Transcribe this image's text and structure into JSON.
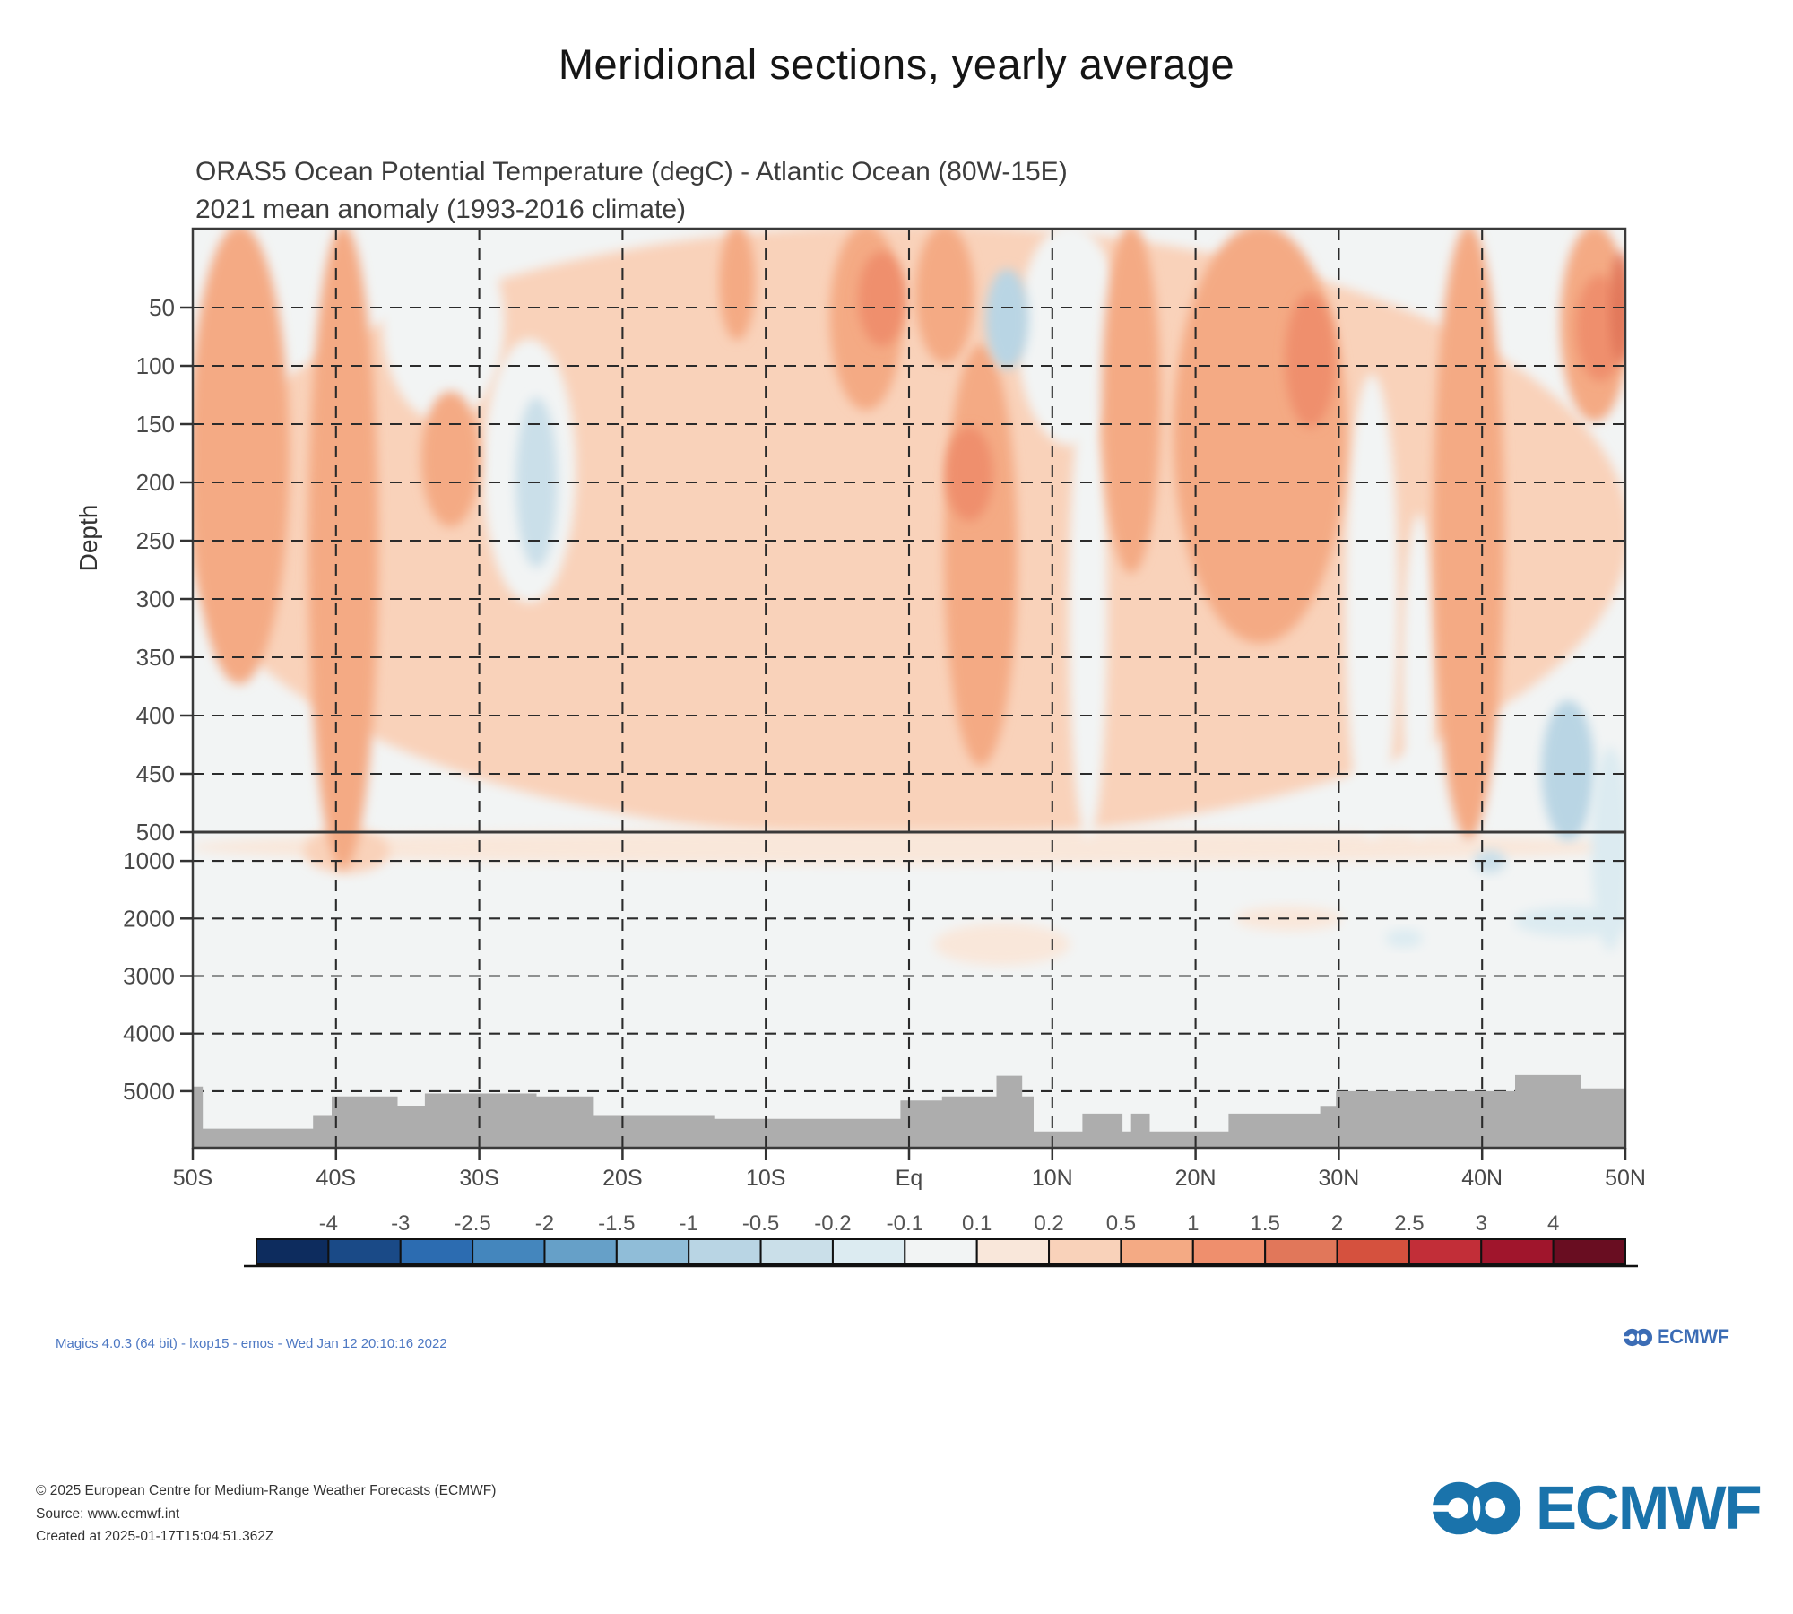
{
  "page": {
    "title": "Meridional sections, yearly average"
  },
  "chart": {
    "subtitle_line1": "ORAS5 Ocean Potential Temperature (degC) - Atlantic Ocean (80W-15E)",
    "subtitle_line2": "2021 mean anomaly (1993-2016 climate)",
    "chart_data": {
      "type": "heatmap",
      "title": "ORAS5 Ocean Potential Temperature (degC) - Atlantic Ocean (80W-15E)",
      "subtitle": "2021 mean anomaly (1993-2016 climate)",
      "units": "degC",
      "xlabel": "",
      "ylabel": "Depth",
      "x_ticks": [
        {
          "lat": -50,
          "label": "50S"
        },
        {
          "lat": -40,
          "label": "40S"
        },
        {
          "lat": -30,
          "label": "30S"
        },
        {
          "lat": -20,
          "label": "20S"
        },
        {
          "lat": -10,
          "label": "10S"
        },
        {
          "lat": 0,
          "label": "Eq"
        },
        {
          "lat": 10,
          "label": "10N"
        },
        {
          "lat": 20,
          "label": "20N"
        },
        {
          "lat": 30,
          "label": "30N"
        },
        {
          "lat": 40,
          "label": "40N"
        },
        {
          "lat": 50,
          "label": "50N"
        }
      ],
      "depth_ticks_m": [
        50,
        100,
        150,
        200,
        250,
        300,
        350,
        400,
        450,
        500,
        1000,
        2000,
        3000,
        4000,
        5000
      ],
      "depth_axis_break_m": 500,
      "max_depth_m": 5980,
      "grid": "dashed",
      "colorbar": {
        "levels": [
          -4,
          -3,
          -2.5,
          -2,
          -1.5,
          -1,
          -0.5,
          -0.2,
          -0.1,
          0.1,
          0.2,
          0.5,
          1,
          1.5,
          2,
          2.5,
          3,
          4
        ],
        "labels": [
          "-4",
          "-3",
          "-2.5",
          "-2",
          "-1.5",
          "-1",
          "-0.5",
          "-0.2",
          "-0.1",
          "0.1",
          "0.2",
          "0.5",
          "1",
          "1.5",
          "2",
          "2.5",
          "3",
          "4"
        ],
        "colors": [
          "#0d2c5e",
          "#1a4a87",
          "#2c6cb1",
          "#4486bd",
          "#66a0c8",
          "#90bdd8",
          "#b9d5e4",
          "#cadfe9",
          "#dcebf1",
          "#f2f4f4",
          "#f9e7da",
          "#f9d2ba",
          "#f4aa84",
          "#ef8f6d",
          "#e1775a",
          "#d5513e",
          "#c22e38",
          "#a0152c",
          "#690d21"
        ]
      },
      "anomaly_patches": [
        [
          -50,
          50,
          0,
          560,
          0.3
        ],
        [
          -50,
          50,
          520,
          1000,
          0.15
        ],
        [
          -42,
          -36.5,
          500,
          1150,
          0.3
        ],
        [
          2,
          11,
          2150,
          2750,
          0.15
        ],
        [
          23,
          30,
          1850,
          2150,
          0.15
        ],
        [
          -36.5,
          -28.5,
          0,
          145,
          0
        ],
        [
          -29.5,
          -23.5,
          80,
          300,
          0
        ],
        [
          7.8,
          14.6,
          0,
          165,
          0
        ],
        [
          11.4,
          13.6,
          120,
          560,
          0
        ],
        [
          30.7,
          33.9,
          110,
          560,
          0
        ],
        [
          34.7,
          36.5,
          230,
          560,
          0
        ],
        [
          -50,
          -43.5,
          0,
          370,
          0.7
        ],
        [
          -41.7,
          -37.3,
          0,
          1080,
          0.7
        ],
        [
          -33.8,
          -30.2,
          125,
          235,
          0.7
        ],
        [
          -13,
          -11,
          0,
          75,
          0.7
        ],
        [
          -5.3,
          -0.7,
          0,
          135,
          0.7
        ],
        [
          0.7,
          4.3,
          0,
          95,
          0.7
        ],
        [
          2.7,
          7.3,
          85,
          440,
          0.7
        ],
        [
          13.7,
          17.3,
          0,
          275,
          0.7
        ],
        [
          18.7,
          30.3,
          0,
          335,
          0.7
        ],
        [
          36.8,
          41.3,
          0,
          560,
          0.7
        ],
        [
          45.7,
          50,
          0,
          145,
          0.7
        ],
        [
          26.5,
          29.5,
          40,
          150,
          1.2
        ],
        [
          2.8,
          5.6,
          155,
          230,
          1.2
        ],
        [
          -3.3,
          -0.5,
          5,
          80,
          1.2
        ],
        [
          46.8,
          49.7,
          25,
          110,
          1.2
        ],
        [
          49.2,
          50,
          5,
          95,
          1.7
        ],
        [
          -27.2,
          -24.8,
          130,
          270,
          -0.3
        ],
        [
          5.6,
          8.1,
          20,
          100,
          -0.7
        ],
        [
          44.4,
          47.6,
          390,
          580,
          -0.7
        ],
        [
          47.9,
          50,
          430,
          2500,
          -0.15
        ],
        [
          39.7,
          41.4,
          870,
          1150,
          -0.3
        ],
        [
          42.5,
          49.9,
          1850,
          2250,
          -0.15
        ],
        [
          33.5,
          35.6,
          2250,
          2450,
          -0.15
        ]
      ],
      "bathymetry_lat_depth": [
        [
          -50,
          4920
        ],
        [
          -49.3,
          4920
        ],
        [
          -49.3,
          5650
        ],
        [
          -41.6,
          5650
        ],
        [
          -41.6,
          5430
        ],
        [
          -40.3,
          5430
        ],
        [
          -40.3,
          5090
        ],
        [
          -35.7,
          5090
        ],
        [
          -35.7,
          5250
        ],
        [
          -33.8,
          5250
        ],
        [
          -33.8,
          5040
        ],
        [
          -26,
          5040
        ],
        [
          -26,
          5090
        ],
        [
          -22,
          5090
        ],
        [
          -22,
          5430
        ],
        [
          -13.6,
          5430
        ],
        [
          -13.6,
          5480
        ],
        [
          -0.6,
          5480
        ],
        [
          -0.6,
          5160
        ],
        [
          2.3,
          5160
        ],
        [
          2.3,
          5090
        ],
        [
          6.1,
          5090
        ],
        [
          6.1,
          4730
        ],
        [
          7.9,
          4730
        ],
        [
          7.9,
          5090
        ],
        [
          8.7,
          5090
        ],
        [
          8.7,
          5700
        ],
        [
          12.1,
          5700
        ],
        [
          12.1,
          5390
        ],
        [
          14.9,
          5390
        ],
        [
          14.9,
          5700
        ],
        [
          15.5,
          5700
        ],
        [
          15.5,
          5390
        ],
        [
          16.8,
          5390
        ],
        [
          16.8,
          5700
        ],
        [
          22.3,
          5700
        ],
        [
          22.3,
          5390
        ],
        [
          28.7,
          5390
        ],
        [
          28.7,
          5270
        ],
        [
          29.8,
          5270
        ],
        [
          29.8,
          5000
        ],
        [
          42.3,
          5000
        ],
        [
          42.3,
          4720
        ],
        [
          46.9,
          4720
        ],
        [
          46.9,
          4950
        ],
        [
          50,
          4950
        ]
      ],
      "seafloor_color": "#adadad"
    }
  },
  "branding": {
    "magics_line": "Magics 4.0.3 (64 bit) - lxop15 - emos - Wed Jan 12 20:10:16 2022",
    "small_logo_text": "ECMWF",
    "big_logo_text": "ECMWF",
    "small_logo_color": "#3b6cb5",
    "big_logo_color": "#1a73ab"
  },
  "footer": {
    "line1": "© 2025 European Centre for Medium-Range Weather Forecasts (ECMWF)",
    "line2": "Source: www.ecmwf.int",
    "line3": "Created at 2025-01-17T15:04:51.362Z"
  }
}
